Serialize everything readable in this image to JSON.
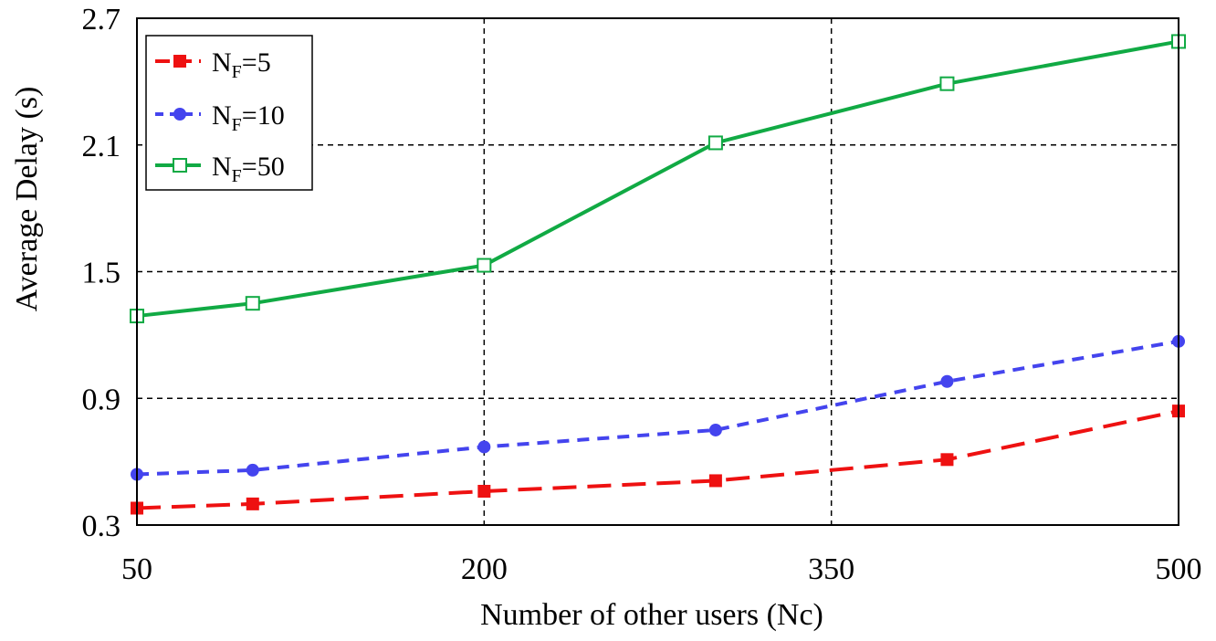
{
  "chart_data": {
    "type": "line",
    "xlabel": "Number of other users (Nc)",
    "ylabel": "Average Delay (s)",
    "xlim": [
      50,
      500
    ],
    "ylim": [
      0.3,
      2.7
    ],
    "x_ticks": [
      "50",
      "200",
      "350",
      "500"
    ],
    "y_ticks": [
      "0.3",
      "0.9",
      "1.5",
      "2.1",
      "2.7"
    ],
    "grid": true,
    "legend_position": "top-left",
    "x": [
      50,
      100,
      200,
      300,
      400,
      500
    ],
    "series": [
      {
        "name": "NF=5",
        "name_main": "N",
        "name_sub": "F",
        "name_rest": "=5",
        "color": "#ee1111",
        "marker": "square-filled",
        "line_style": "long-dash",
        "values": [
          0.38,
          0.4,
          0.46,
          0.51,
          0.61,
          0.84
        ]
      },
      {
        "name": "NF=10",
        "name_main": "N",
        "name_sub": "F",
        "name_rest": "=10",
        "color": "#4444ee",
        "marker": "circle-filled",
        "line_style": "dash",
        "values": [
          0.54,
          0.56,
          0.67,
          0.75,
          0.98,
          1.17
        ]
      },
      {
        "name": "NF=50",
        "name_main": "N",
        "name_sub": "F",
        "name_rest": "=50",
        "color": "#11aa44",
        "marker": "square-open",
        "line_style": "solid",
        "values": [
          1.29,
          1.35,
          1.53,
          2.11,
          2.39,
          2.59
        ]
      }
    ]
  }
}
